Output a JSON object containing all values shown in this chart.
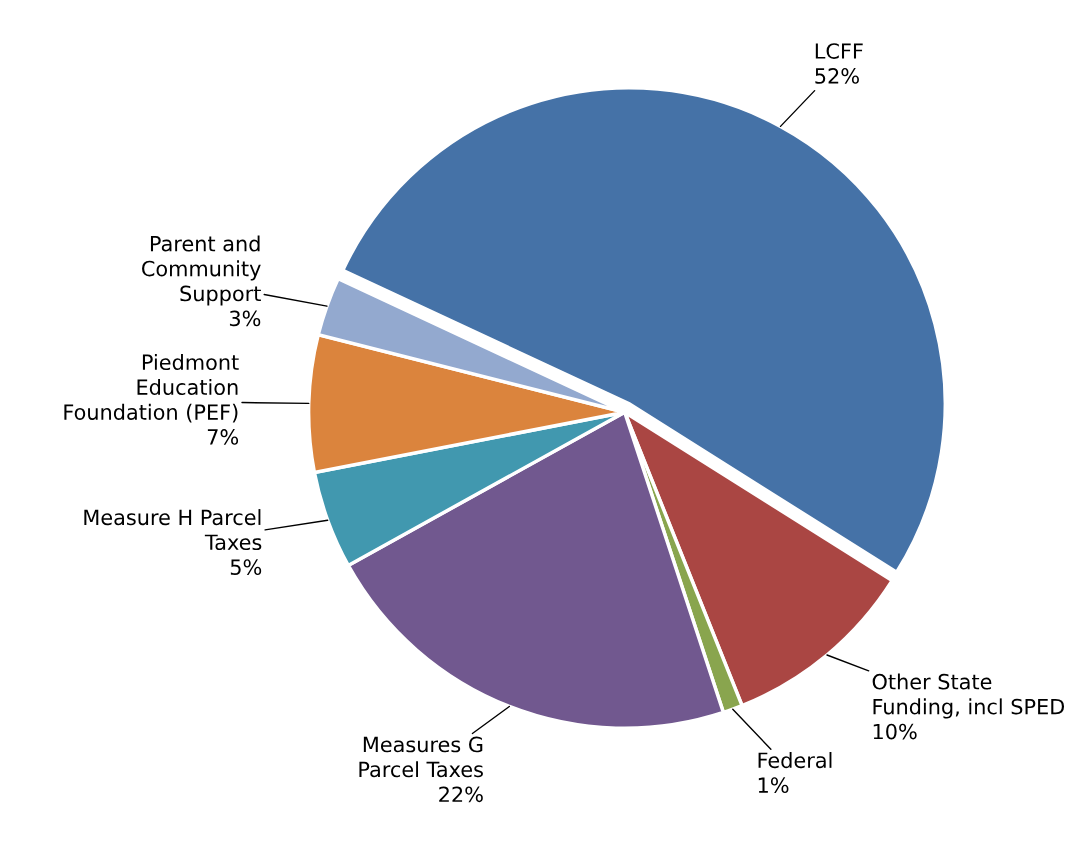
{
  "chart_data": {
    "type": "pie",
    "categories": [
      "LCFF",
      "Other State\nFunding, incl SPED",
      "Federal",
      "Measures G\nParcel Taxes",
      "Measure H Parcel\nTaxes",
      "Piedmont\nEducation\nFoundation (PEF)",
      "Parent and\nCommunity\nSupport"
    ],
    "values": [
      52,
      10,
      1,
      22,
      5,
      7,
      3
    ],
    "value_labels": [
      "52%",
      "10%",
      "1%",
      "22%",
      "5%",
      "7%",
      "3%"
    ],
    "colors": [
      "#4572a7",
      "#aa4643",
      "#89a54e",
      "#71588f",
      "#4198af",
      "#db843d",
      "#93a9cf"
    ]
  }
}
